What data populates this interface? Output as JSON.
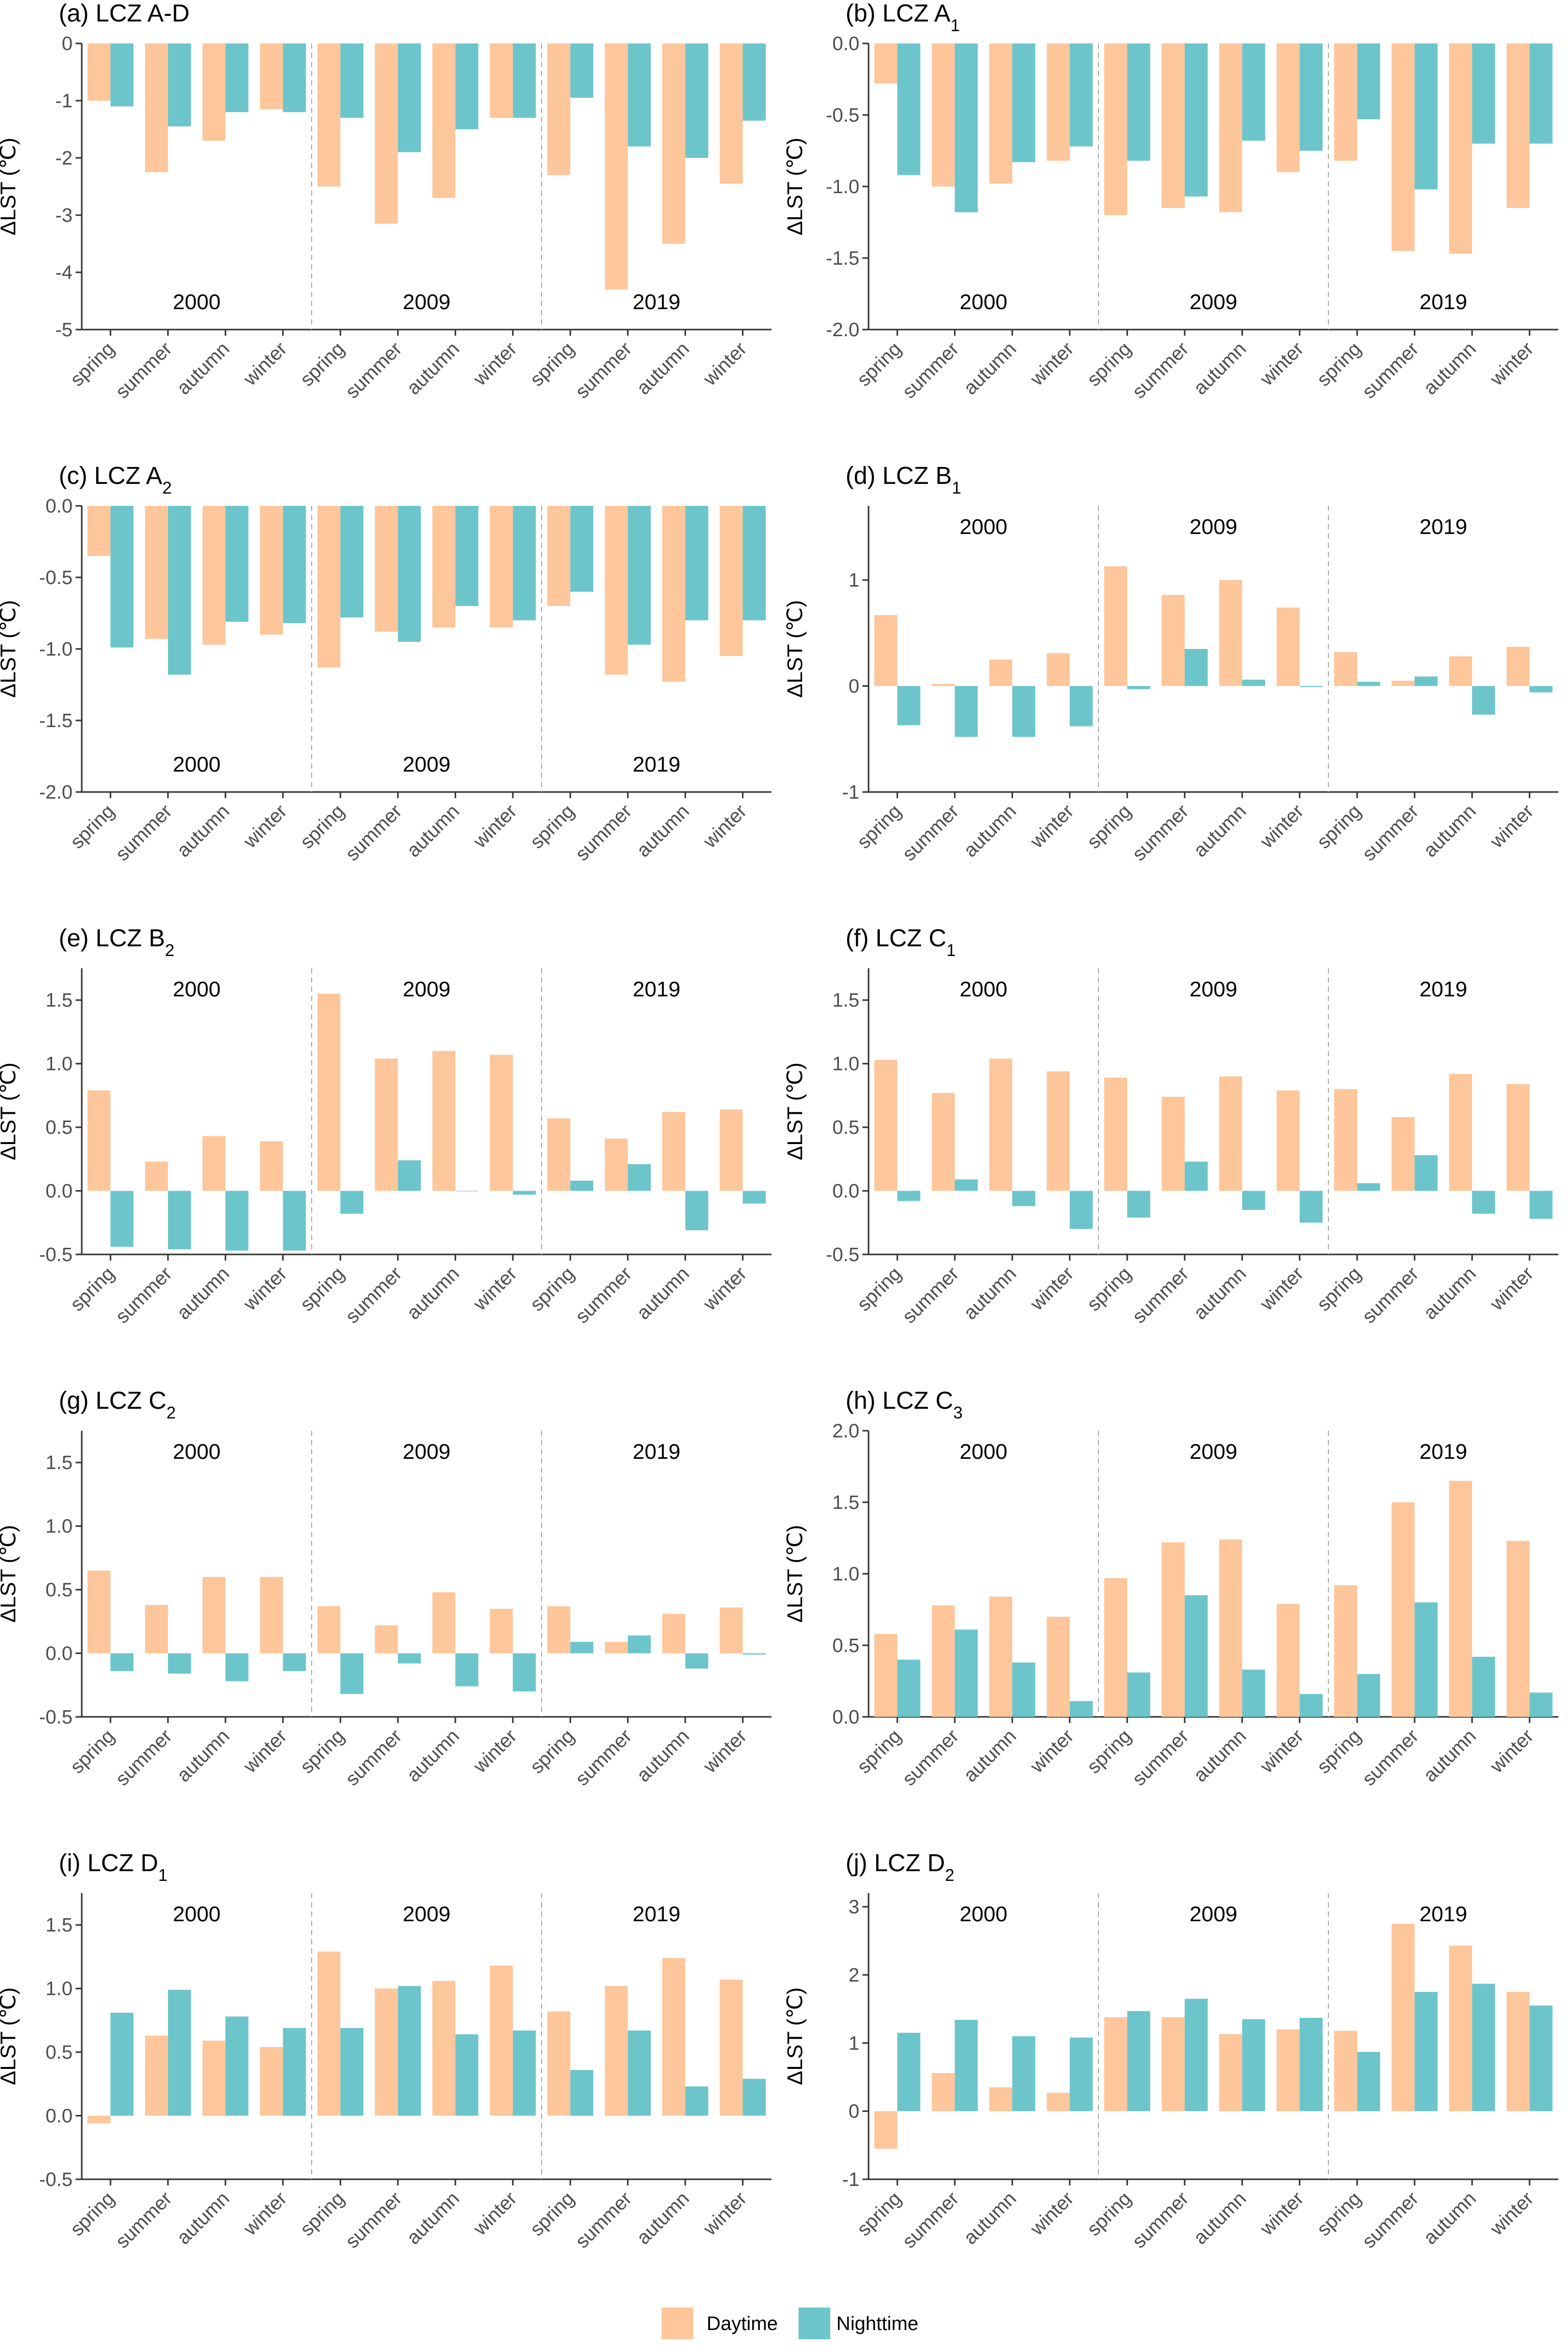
{
  "colors": {
    "day": "#FDC69B",
    "night": "#6CC5CA",
    "axis": "#333333",
    "tick_text": "#4d4d4d",
    "separator": "#aaaaaa"
  },
  "legend": {
    "day_label": "Daytime",
    "night_label": "Nighttime"
  },
  "chart_data": [
    {
      "type": "bar",
      "id": "a",
      "title_main": "(a) LCZ A-D",
      "title_sub": "",
      "ylabel": "ΔLST (℃)",
      "ylim": [
        -5,
        0
      ],
      "yticks": [
        0,
        -1,
        -2,
        -3,
        -4,
        -5
      ],
      "ytick_labels": [
        "0",
        "-1",
        "-2",
        "-3",
        "-4",
        "-5"
      ],
      "years": [
        "2000",
        "2009",
        "2019"
      ],
      "categories": [
        "spring",
        "summer",
        "autumn",
        "winter"
      ],
      "series": [
        {
          "name": "Daytime",
          "values": [
            [
              -1.0,
              -2.25,
              -1.7,
              -1.15
            ],
            [
              -2.5,
              -3.15,
              -2.7,
              -1.3
            ],
            [
              -2.3,
              -4.3,
              -3.5,
              -2.45
            ]
          ]
        },
        {
          "name": "Nighttime",
          "values": [
            [
              -1.1,
              -1.45,
              -1.2,
              -1.2
            ],
            [
              -1.3,
              -1.9,
              -1.5,
              -1.3
            ],
            [
              -0.95,
              -1.8,
              -2.0,
              -1.35
            ]
          ]
        }
      ]
    },
    {
      "type": "bar",
      "id": "b",
      "title_main": "(b) LCZ A",
      "title_sub": "1",
      "ylabel": "ΔLST (℃)",
      "ylim": [
        -2,
        0
      ],
      "yticks": [
        0,
        -0.5,
        -1,
        -1.5,
        -2
      ],
      "ytick_labels": [
        "0.0",
        "-0.5",
        "-1.0",
        "-1.5",
        "-2.0"
      ],
      "years": [
        "2000",
        "2009",
        "2019"
      ],
      "categories": [
        "spring",
        "summer",
        "autumn",
        "winter"
      ],
      "series": [
        {
          "name": "Daytime",
          "values": [
            [
              -0.28,
              -1.0,
              -0.98,
              -0.82
            ],
            [
              -1.2,
              -1.15,
              -1.18,
              -0.9
            ],
            [
              -0.82,
              -1.45,
              -1.47,
              -1.15
            ]
          ]
        },
        {
          "name": "Nighttime",
          "values": [
            [
              -0.92,
              -1.18,
              -0.83,
              -0.72
            ],
            [
              -0.82,
              -1.07,
              -0.68,
              -0.75
            ],
            [
              -0.53,
              -1.02,
              -0.7,
              -0.7
            ]
          ]
        }
      ]
    },
    {
      "type": "bar",
      "id": "c",
      "title_main": "(c) LCZ A",
      "title_sub": "2",
      "ylabel": "ΔLST (℃)",
      "ylim": [
        -2,
        0
      ],
      "yticks": [
        0,
        -0.5,
        -1,
        -1.5,
        -2
      ],
      "ytick_labels": [
        "0.0",
        "-0.5",
        "-1.0",
        "-1.5",
        "-2.0"
      ],
      "years": [
        "2000",
        "2009",
        "2019"
      ],
      "categories": [
        "spring",
        "summer",
        "autumn",
        "winter"
      ],
      "series": [
        {
          "name": "Daytime",
          "values": [
            [
              -0.35,
              -0.93,
              -0.97,
              -0.9
            ],
            [
              -1.13,
              -0.88,
              -0.85,
              -0.85
            ],
            [
              -0.7,
              -1.18,
              -1.23,
              -1.05
            ]
          ]
        },
        {
          "name": "Nighttime",
          "values": [
            [
              -0.99,
              -1.18,
              -0.81,
              -0.82
            ],
            [
              -0.78,
              -0.95,
              -0.7,
              -0.8
            ],
            [
              -0.6,
              -0.97,
              -0.8,
              -0.8
            ]
          ]
        }
      ]
    },
    {
      "type": "bar",
      "id": "d",
      "title_main": "(d) LCZ B",
      "title_sub": "1",
      "ylabel": "ΔLST (℃)",
      "ylim": [
        -1,
        1.7
      ],
      "yticks": [
        1,
        0,
        -1
      ],
      "ytick_labels": [
        "1",
        "0",
        "-1"
      ],
      "years": [
        "2000",
        "2009",
        "2019"
      ],
      "categories": [
        "spring",
        "summer",
        "autumn",
        "winter"
      ],
      "series": [
        {
          "name": "Daytime",
          "values": [
            [
              0.67,
              0.02,
              0.25,
              0.31
            ],
            [
              1.13,
              0.86,
              1.0,
              0.74
            ],
            [
              0.32,
              0.05,
              0.28,
              0.37
            ]
          ]
        },
        {
          "name": "Nighttime",
          "values": [
            [
              -0.37,
              -0.48,
              -0.48,
              -0.38
            ],
            [
              -0.03,
              0.35,
              0.06,
              -0.01
            ],
            [
              0.04,
              0.09,
              -0.27,
              -0.06
            ]
          ]
        }
      ]
    },
    {
      "type": "bar",
      "id": "e",
      "title_main": "(e) LCZ B",
      "title_sub": "2",
      "ylabel": "ΔLST (℃)",
      "ylim": [
        -0.5,
        1.75
      ],
      "yticks": [
        1.5,
        1.0,
        0.5,
        0.0,
        -0.5
      ],
      "ytick_labels": [
        "1.5",
        "1.0",
        "0.5",
        "0.0",
        "-0.5"
      ],
      "years": [
        "2000",
        "2009",
        "2019"
      ],
      "categories": [
        "spring",
        "summer",
        "autumn",
        "winter"
      ],
      "series": [
        {
          "name": "Daytime",
          "values": [
            [
              0.79,
              0.23,
              0.43,
              0.39
            ],
            [
              1.55,
              1.04,
              1.1,
              1.07
            ],
            [
              0.57,
              0.41,
              0.62,
              0.64
            ]
          ]
        },
        {
          "name": "Nighttime",
          "values": [
            [
              -0.44,
              -0.46,
              -0.47,
              -0.47
            ],
            [
              -0.18,
              0.24,
              0.0,
              -0.03
            ],
            [
              0.08,
              0.21,
              -0.31,
              -0.1
            ]
          ]
        }
      ]
    },
    {
      "type": "bar",
      "id": "f",
      "title_main": "(f) LCZ C",
      "title_sub": "1",
      "ylabel": "ΔLST (℃)",
      "ylim": [
        -0.5,
        1.75
      ],
      "yticks": [
        1.5,
        1.0,
        0.5,
        0.0,
        -0.5
      ],
      "ytick_labels": [
        "1.5",
        "1.0",
        "0.5",
        "0.0",
        "-0.5"
      ],
      "years": [
        "2000",
        "2009",
        "2019"
      ],
      "categories": [
        "spring",
        "summer",
        "autumn",
        "winter"
      ],
      "series": [
        {
          "name": "Daytime",
          "values": [
            [
              1.03,
              0.77,
              1.04,
              0.94
            ],
            [
              0.89,
              0.74,
              0.9,
              0.79
            ],
            [
              0.8,
              0.58,
              0.92,
              0.84
            ]
          ]
        },
        {
          "name": "Nighttime",
          "values": [
            [
              -0.08,
              0.09,
              -0.12,
              -0.3
            ],
            [
              -0.21,
              0.23,
              -0.15,
              -0.25
            ],
            [
              0.06,
              0.28,
              -0.18,
              -0.22
            ]
          ]
        }
      ]
    },
    {
      "type": "bar",
      "id": "g",
      "title_main": "(g) LCZ C",
      "title_sub": "2",
      "ylabel": "ΔLST (℃)",
      "ylim": [
        -0.5,
        1.75
      ],
      "yticks": [
        1.5,
        1.0,
        0.5,
        0.0,
        -0.5
      ],
      "ytick_labels": [
        "1.5",
        "1.0",
        "0.5",
        "0.0",
        "-0.5"
      ],
      "years": [
        "2000",
        "2009",
        "2019"
      ],
      "categories": [
        "spring",
        "summer",
        "autumn",
        "winter"
      ],
      "series": [
        {
          "name": "Daytime",
          "values": [
            [
              0.65,
              0.38,
              0.6,
              0.6
            ],
            [
              0.37,
              0.22,
              0.48,
              0.35
            ],
            [
              0.37,
              0.09,
              0.31,
              0.36
            ]
          ]
        },
        {
          "name": "Nighttime",
          "values": [
            [
              -0.14,
              -0.16,
              -0.22,
              -0.14
            ],
            [
              -0.32,
              -0.08,
              -0.26,
              -0.3
            ],
            [
              0.09,
              0.14,
              -0.12,
              -0.01
            ]
          ]
        }
      ]
    },
    {
      "type": "bar",
      "id": "h",
      "title_main": "(h) LCZ C",
      "title_sub": "3",
      "ylabel": "ΔLST (℃)",
      "ylim": [
        0,
        2.0
      ],
      "yticks": [
        2.0,
        1.5,
        1.0,
        0.5,
        0.0
      ],
      "ytick_labels": [
        "2.0",
        "1.5",
        "1.0",
        "0.5",
        "0.0"
      ],
      "years": [
        "2000",
        "2009",
        "2019"
      ],
      "categories": [
        "spring",
        "summer",
        "autumn",
        "winter"
      ],
      "series": [
        {
          "name": "Daytime",
          "values": [
            [
              0.58,
              0.78,
              0.84,
              0.7
            ],
            [
              0.97,
              1.22,
              1.24,
              0.79
            ],
            [
              0.92,
              1.5,
              1.65,
              1.23
            ]
          ]
        },
        {
          "name": "Nighttime",
          "values": [
            [
              0.4,
              0.61,
              0.38,
              0.11
            ],
            [
              0.31,
              0.85,
              0.33,
              0.16
            ],
            [
              0.3,
              0.8,
              0.42,
              0.17
            ]
          ]
        }
      ]
    },
    {
      "type": "bar",
      "id": "i",
      "title_main": "(i) LCZ D",
      "title_sub": "1",
      "ylabel": "ΔLST (℃)",
      "ylim": [
        -0.5,
        1.75
      ],
      "yticks": [
        1.5,
        1.0,
        0.5,
        0.0,
        -0.5
      ],
      "ytick_labels": [
        "1.5",
        "1.0",
        "0.5",
        "0.0",
        "-0.5"
      ],
      "years": [
        "2000",
        "2009",
        "2019"
      ],
      "categories": [
        "spring",
        "summer",
        "autumn",
        "winter"
      ],
      "series": [
        {
          "name": "Daytime",
          "values": [
            [
              -0.06,
              0.63,
              0.59,
              0.54
            ],
            [
              1.29,
              1.0,
              1.06,
              1.18
            ],
            [
              0.82,
              1.02,
              1.24,
              1.07
            ]
          ]
        },
        {
          "name": "Nighttime",
          "values": [
            [
              0.81,
              0.99,
              0.78,
              0.69
            ],
            [
              0.69,
              1.02,
              0.64,
              0.67
            ],
            [
              0.36,
              0.67,
              0.23,
              0.29
            ]
          ]
        }
      ]
    },
    {
      "type": "bar",
      "id": "j",
      "title_main": "(j) LCZ D",
      "title_sub": "2",
      "ylabel": "ΔLST (℃)",
      "ylim": [
        -1,
        3.2
      ],
      "yticks": [
        3,
        2,
        1,
        0,
        -1
      ],
      "ytick_labels": [
        "3",
        "2",
        "1",
        "0",
        "-1"
      ],
      "years": [
        "2000",
        "2009",
        "2019"
      ],
      "categories": [
        "spring",
        "summer",
        "autumn",
        "winter"
      ],
      "series": [
        {
          "name": "Daytime",
          "values": [
            [
              -0.55,
              0.56,
              0.35,
              0.27
            ],
            [
              1.38,
              1.38,
              1.13,
              1.2
            ],
            [
              1.18,
              2.75,
              2.43,
              1.75
            ]
          ]
        },
        {
          "name": "Nighttime",
          "values": [
            [
              1.15,
              1.34,
              1.1,
              1.08
            ],
            [
              1.47,
              1.65,
              1.35,
              1.37
            ],
            [
              0.87,
              1.75,
              1.87,
              1.55
            ]
          ]
        }
      ]
    }
  ]
}
